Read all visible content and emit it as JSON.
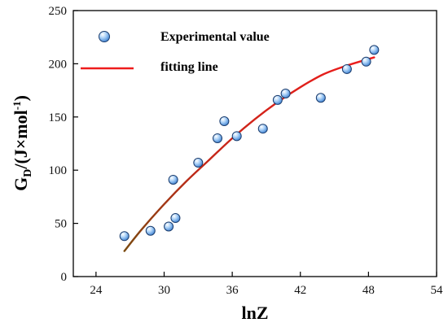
{
  "chart_data": {
    "type": "scatter",
    "xlabel": "lnZ",
    "ylabel_main": "G",
    "ylabel_sub": "D",
    "ylabel_rest": "/(J×mol",
    "ylabel_sup": "-1",
    "ylabel_close": ")",
    "xlim": [
      22,
      54
    ],
    "ylim": [
      0,
      250
    ],
    "xticks": [
      24,
      30,
      36,
      42,
      48,
      54
    ],
    "yticks": [
      0,
      50,
      100,
      150,
      200,
      250
    ],
    "grid": false,
    "legend_position": "top-left",
    "series": [
      {
        "name": "Experimental value",
        "kind": "points",
        "color": "#5a9ee6",
        "x": [
          26.5,
          28.8,
          30.4,
          30.8,
          31.0,
          33.0,
          34.7,
          35.3,
          36.4,
          38.7,
          40.0,
          40.7,
          43.8,
          46.1,
          47.8,
          48.5
        ],
        "y": [
          38,
          43,
          47,
          91,
          55,
          107,
          130,
          146,
          132,
          139,
          166,
          172,
          168,
          195,
          202,
          213
        ]
      },
      {
        "name": "fitting line",
        "kind": "line",
        "color": "#ee1c1c",
        "x": [
          26.5,
          28,
          30,
          32,
          34,
          36,
          38,
          40,
          42,
          44,
          46,
          48.5
        ],
        "y": [
          24,
          44,
          68,
          90,
          110,
          130,
          148,
          164,
          178,
          190,
          198,
          206
        ]
      }
    ]
  }
}
